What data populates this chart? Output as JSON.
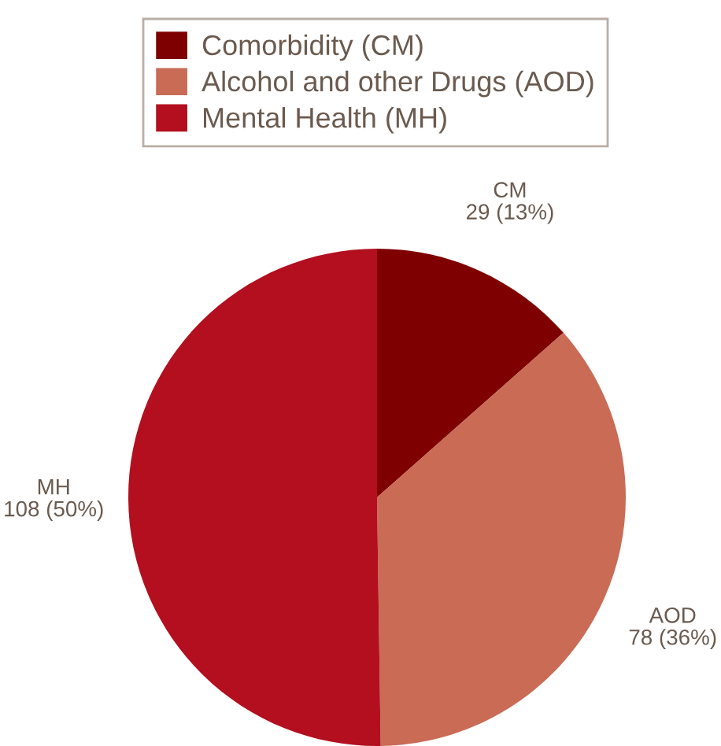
{
  "chart_data": {
    "type": "pie",
    "categories": [
      "Comorbidity (CM)",
      "Alcohol and other Drugs (AOD)",
      "Mental Health (MH)"
    ],
    "values": [
      29,
      78,
      108
    ],
    "colors": [
      "#7f0000",
      "#c96b55",
      "#b30f1e"
    ],
    "value_labels": [
      "CM\n29 (13%)",
      "AOD\n78 (36%)",
      "MH\n108 (50%)"
    ],
    "legend": "top"
  }
}
